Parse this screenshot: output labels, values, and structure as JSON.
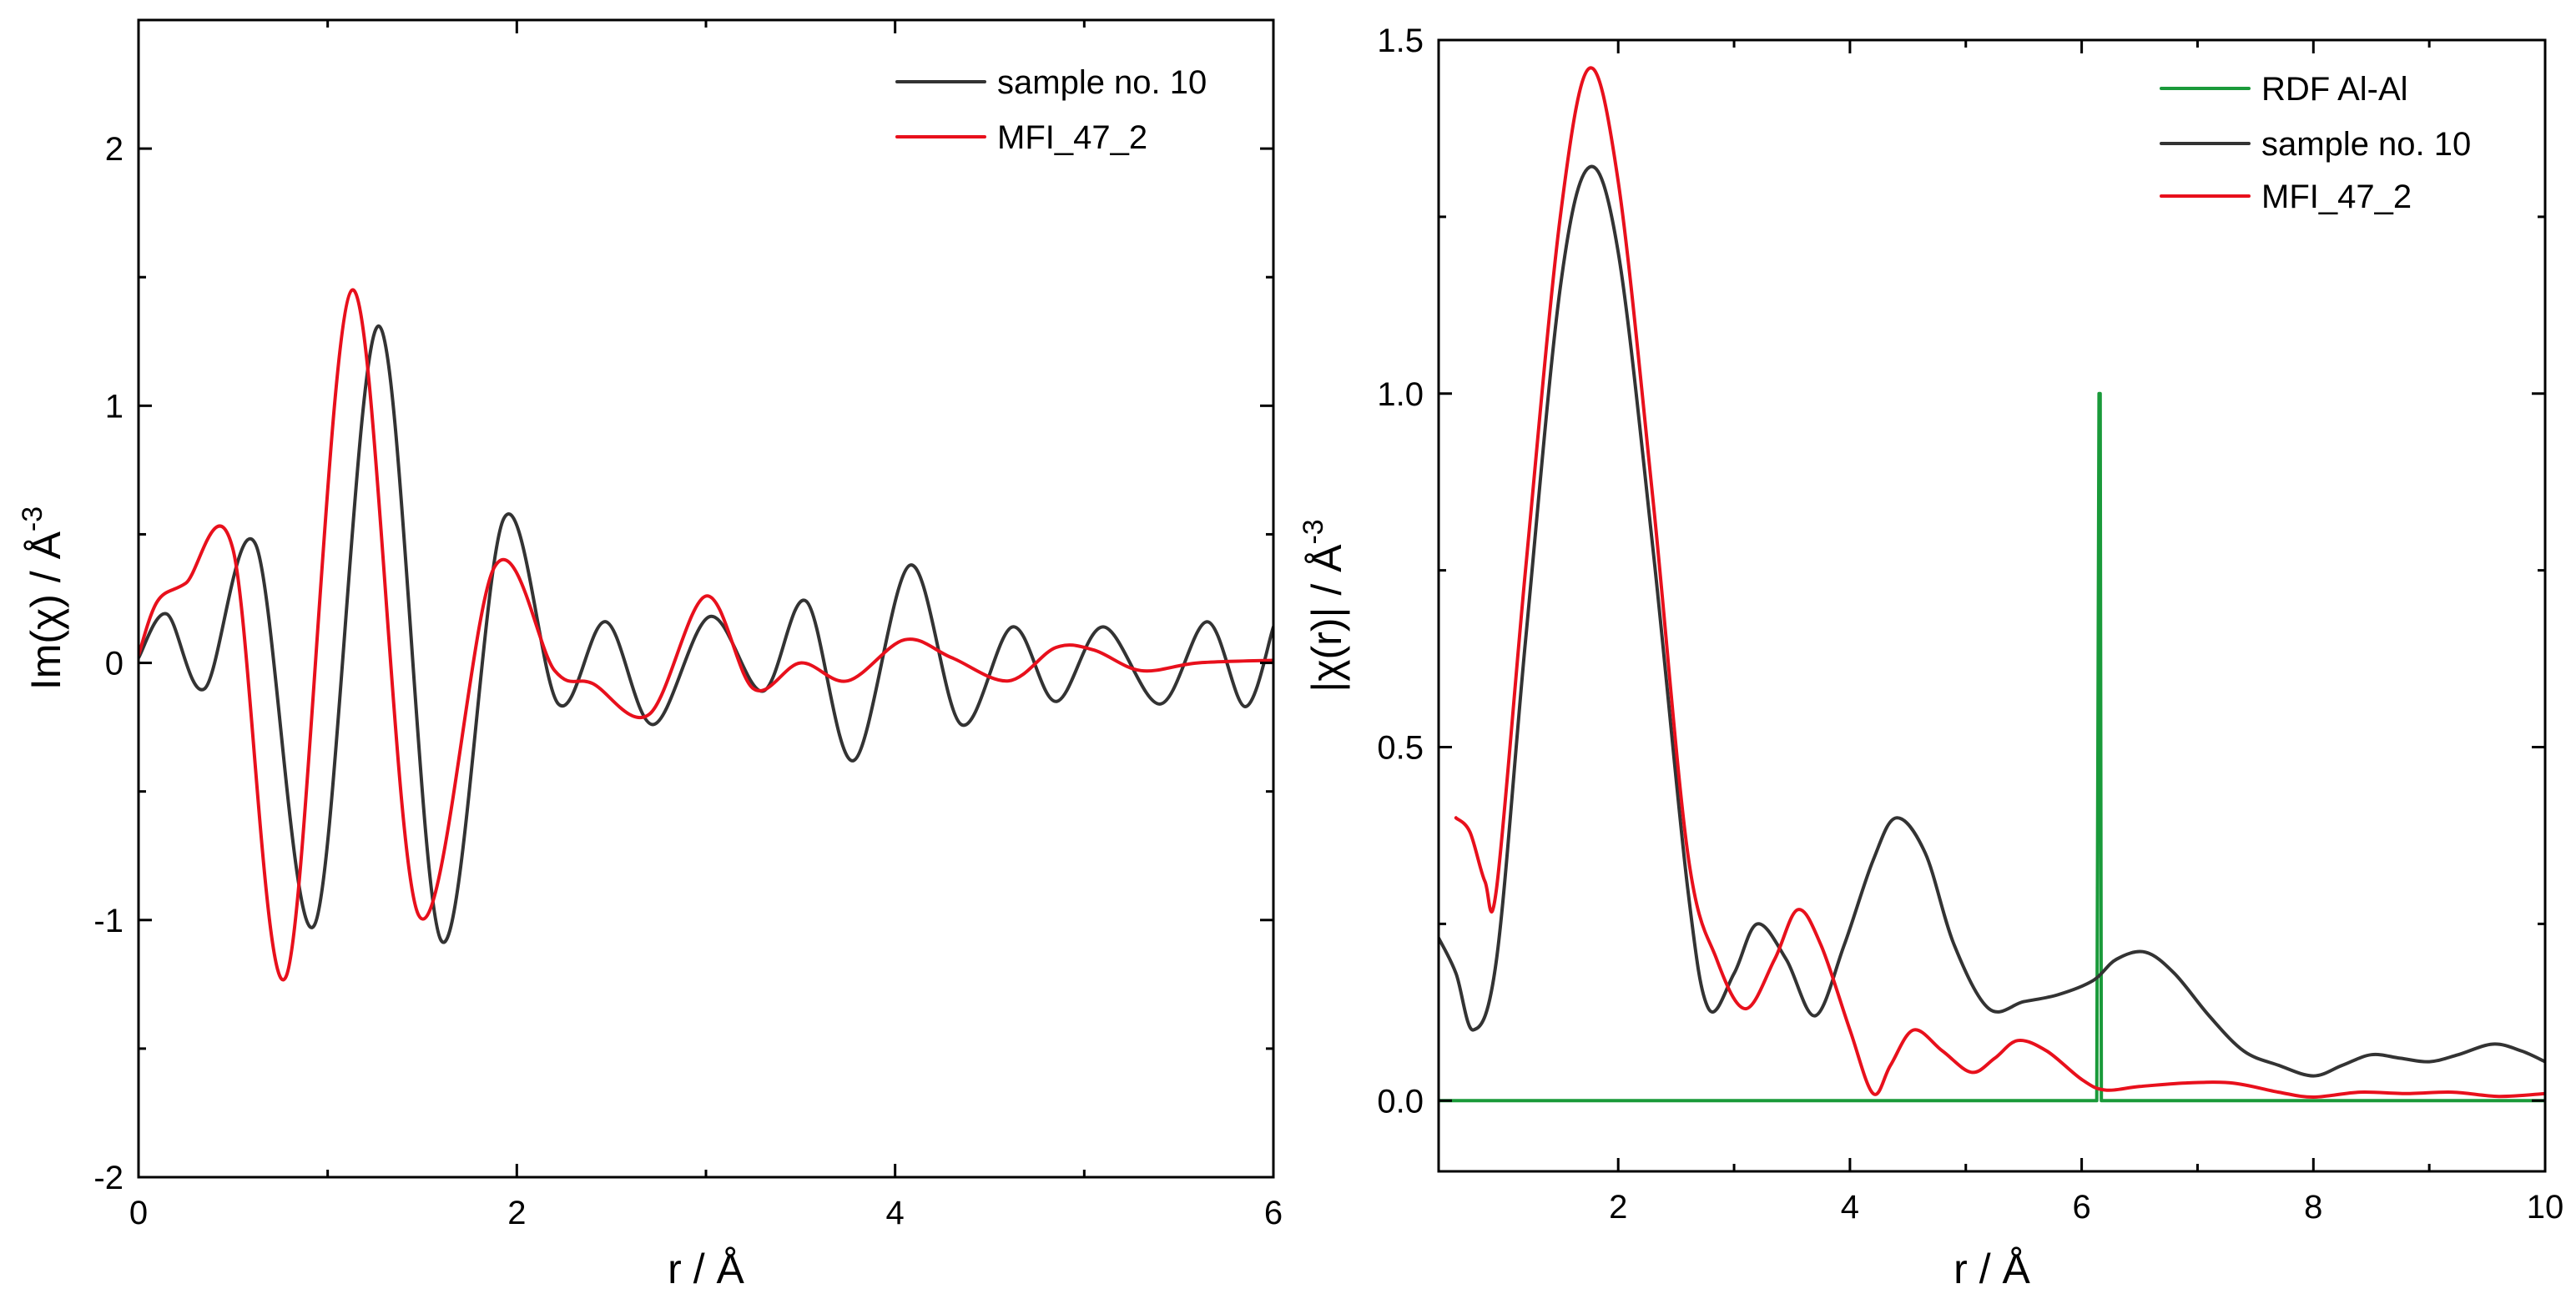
{
  "chart_data": [
    {
      "type": "line",
      "panel": "left",
      "title": "",
      "xlabel": "r / Å",
      "ylabel_main": "Im(χ) / Å",
      "ylabel_sup": "-3",
      "xlim": [
        0,
        6
      ],
      "ylim": [
        -2,
        2.5
      ],
      "xticks": [
        0,
        2,
        4,
        6
      ],
      "yticks": [
        -2,
        -1,
        0,
        1,
        2
      ],
      "xtick_labels": [
        "0",
        "2",
        "4",
        "6"
      ],
      "ytick_labels": [
        "-2",
        "-1",
        "0",
        "1",
        "2"
      ],
      "grid": false,
      "legend_position": "top-right",
      "series": [
        {
          "name": "sample no. 10",
          "color": "#333333",
          "x": [
            0.0,
            0.15,
            0.35,
            0.62,
            0.93,
            1.27,
            1.6,
            1.93,
            2.22,
            2.47,
            2.72,
            3.02,
            3.3,
            3.53,
            3.78,
            4.08,
            4.35,
            4.62,
            4.85,
            5.1,
            5.4,
            5.65,
            5.85,
            6.0
          ],
          "y": [
            0.02,
            0.19,
            -0.1,
            0.46,
            -1.02,
            1.31,
            -1.08,
            0.56,
            -0.16,
            0.16,
            -0.24,
            0.18,
            -0.11,
            0.24,
            -0.38,
            0.38,
            -0.24,
            0.14,
            -0.15,
            0.14,
            -0.16,
            0.16,
            -0.17,
            0.14
          ]
        },
        {
          "name": "MFI_47_2",
          "color": "#e8101c",
          "x": [
            0.0,
            0.1,
            0.25,
            0.5,
            0.78,
            1.13,
            1.48,
            1.88,
            2.2,
            2.4,
            2.7,
            3.0,
            3.25,
            3.5,
            3.75,
            4.05,
            4.3,
            4.6,
            4.85,
            5.05,
            5.3,
            5.6,
            6.0
          ],
          "y": [
            0.03,
            0.24,
            0.31,
            0.44,
            -1.22,
            1.45,
            -0.98,
            0.37,
            -0.03,
            -0.08,
            -0.2,
            0.26,
            -0.1,
            0.0,
            -0.07,
            0.09,
            0.02,
            -0.07,
            0.06,
            0.05,
            -0.03,
            0.0,
            0.01
          ]
        }
      ]
    },
    {
      "type": "line",
      "panel": "right",
      "title": "",
      "xlabel": "r / Å",
      "ylabel_main": "|χ(r)| / Å",
      "ylabel_sup": "-3",
      "xlim": [
        0.45,
        10
      ],
      "ylim": [
        -0.1,
        1.5
      ],
      "xticks": [
        2,
        4,
        6,
        8,
        10
      ],
      "yticks": [
        0.0,
        0.5,
        1.0,
        1.5
      ],
      "xtick_labels": [
        "2",
        "4",
        "6",
        "8",
        "10"
      ],
      "ytick_labels": [
        "0.0",
        "0.5",
        "1.0",
        "1.5"
      ],
      "grid": false,
      "legend_position": "top-right",
      "series": [
        {
          "name": "RDF Al-Al",
          "color": "#1a9a3a",
          "x": [
            0.45,
            6.13,
            6.15,
            6.16,
            6.17,
            10.0
          ],
          "y": [
            0.0,
            0.0,
            1.0,
            1.0,
            0.0,
            0.0
          ]
        },
        {
          "name": "sample no. 10",
          "color": "#333333",
          "x": [
            0.45,
            0.6,
            0.75,
            0.95,
            1.2,
            1.5,
            1.75,
            2.0,
            2.3,
            2.6,
            2.78,
            3.0,
            3.2,
            3.45,
            3.7,
            3.95,
            4.2,
            4.4,
            4.65,
            4.9,
            5.2,
            5.5,
            5.8,
            6.1,
            6.3,
            6.55,
            6.8,
            7.1,
            7.4,
            7.7,
            8.0,
            8.25,
            8.5,
            8.75,
            9.0,
            9.25,
            9.55,
            9.8,
            10.0
          ],
          "y": [
            0.23,
            0.18,
            0.1,
            0.2,
            0.65,
            1.15,
            1.32,
            1.2,
            0.78,
            0.3,
            0.13,
            0.18,
            0.25,
            0.2,
            0.12,
            0.22,
            0.34,
            0.4,
            0.35,
            0.22,
            0.13,
            0.14,
            0.15,
            0.17,
            0.2,
            0.21,
            0.18,
            0.12,
            0.07,
            0.05,
            0.035,
            0.05,
            0.065,
            0.06,
            0.055,
            0.065,
            0.08,
            0.07,
            0.055
          ]
        },
        {
          "name": "MFI_47_2",
          "color": "#e8101c",
          "x": [
            0.6,
            0.72,
            0.85,
            0.95,
            1.2,
            1.5,
            1.75,
            2.0,
            2.3,
            2.6,
            2.85,
            3.1,
            3.35,
            3.55,
            3.75,
            4.0,
            4.2,
            4.35,
            4.55,
            4.8,
            5.05,
            5.25,
            5.45,
            5.7,
            6.0,
            6.2,
            6.5,
            6.9,
            7.3,
            7.7,
            8.0,
            8.4,
            8.8,
            9.2,
            9.6,
            10.0
          ],
          "y": [
            0.4,
            0.38,
            0.31,
            0.3,
            0.75,
            1.25,
            1.46,
            1.3,
            0.85,
            0.35,
            0.2,
            0.13,
            0.2,
            0.27,
            0.22,
            0.1,
            0.01,
            0.05,
            0.1,
            0.07,
            0.04,
            0.06,
            0.085,
            0.07,
            0.03,
            0.015,
            0.02,
            0.025,
            0.025,
            0.012,
            0.005,
            0.012,
            0.01,
            0.012,
            0.006,
            0.01
          ]
        }
      ]
    }
  ]
}
